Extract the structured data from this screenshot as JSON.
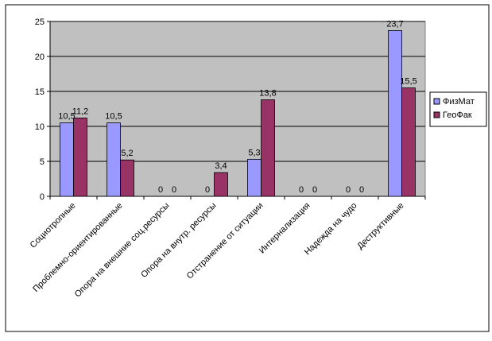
{
  "chart_data": {
    "type": "bar",
    "categories": [
      "Социотропные",
      "Проблемно-ориентированные",
      "Опора на внешние соц.ресурсы",
      "Опора на внутр. ресурсы",
      "Отстранение от ситуации",
      "Интернализация",
      "Надежда на чудо",
      "Деструктивные"
    ],
    "series": [
      {
        "name": "ФизМат",
        "color": "#9999FF",
        "values": [
          10.5,
          10.5,
          0,
          0,
          5.3,
          0,
          0,
          23.7
        ],
        "labels": [
          "10,5",
          "10,5",
          "0",
          "0",
          "5,3",
          "0",
          "0",
          "23,7"
        ]
      },
      {
        "name": "ГеоФак",
        "color": "#993366",
        "values": [
          11.2,
          5.2,
          0,
          3.4,
          13.8,
          0,
          0,
          15.5
        ],
        "labels": [
          "11,2",
          "5,2",
          "0",
          "3,4",
          "13,8",
          "0",
          "0",
          "15,5"
        ]
      }
    ],
    "yticks": [
      "0",
      "5",
      "10",
      "15",
      "20",
      "25"
    ],
    "ylim": [
      0,
      25
    ],
    "grid": true,
    "legend": "right",
    "plot_bg": "#C0C0C0"
  }
}
